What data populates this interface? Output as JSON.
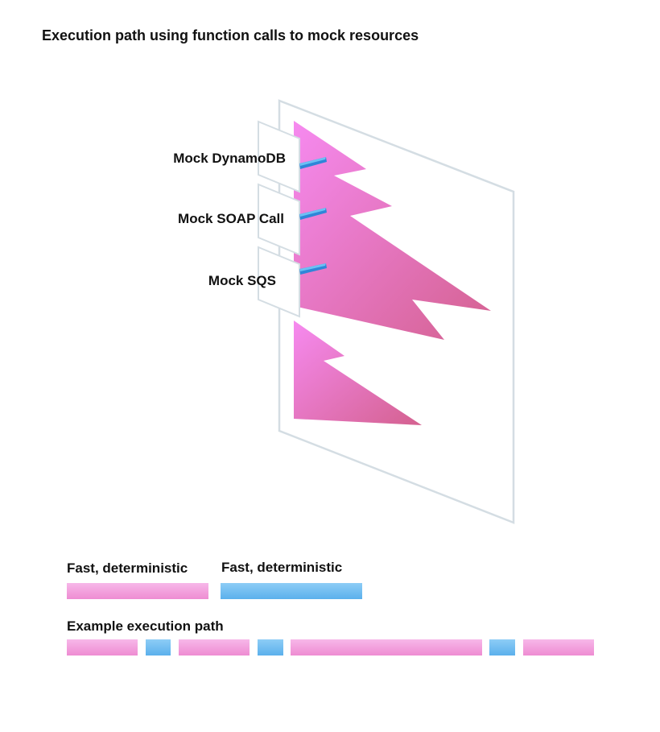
{
  "title": "Execution path using function calls to mock resources",
  "mocks": [
    {
      "label": "Mock DynamoDB"
    },
    {
      "label": "Mock SOAP Call"
    },
    {
      "label": "Mock SQS"
    }
  ],
  "legend": {
    "pink_label": "Fast, deterministic",
    "blue_label": "Fast, deterministic"
  },
  "example": {
    "label": "Example execution path",
    "segments": [
      "pink",
      "blue",
      "pink",
      "blue",
      "pink",
      "blue",
      "pink"
    ]
  },
  "colors": {
    "pink": "#ee8cd2",
    "blue": "#5bb0ec",
    "frame": "#d4dde3",
    "connector": "#2f86d8"
  }
}
